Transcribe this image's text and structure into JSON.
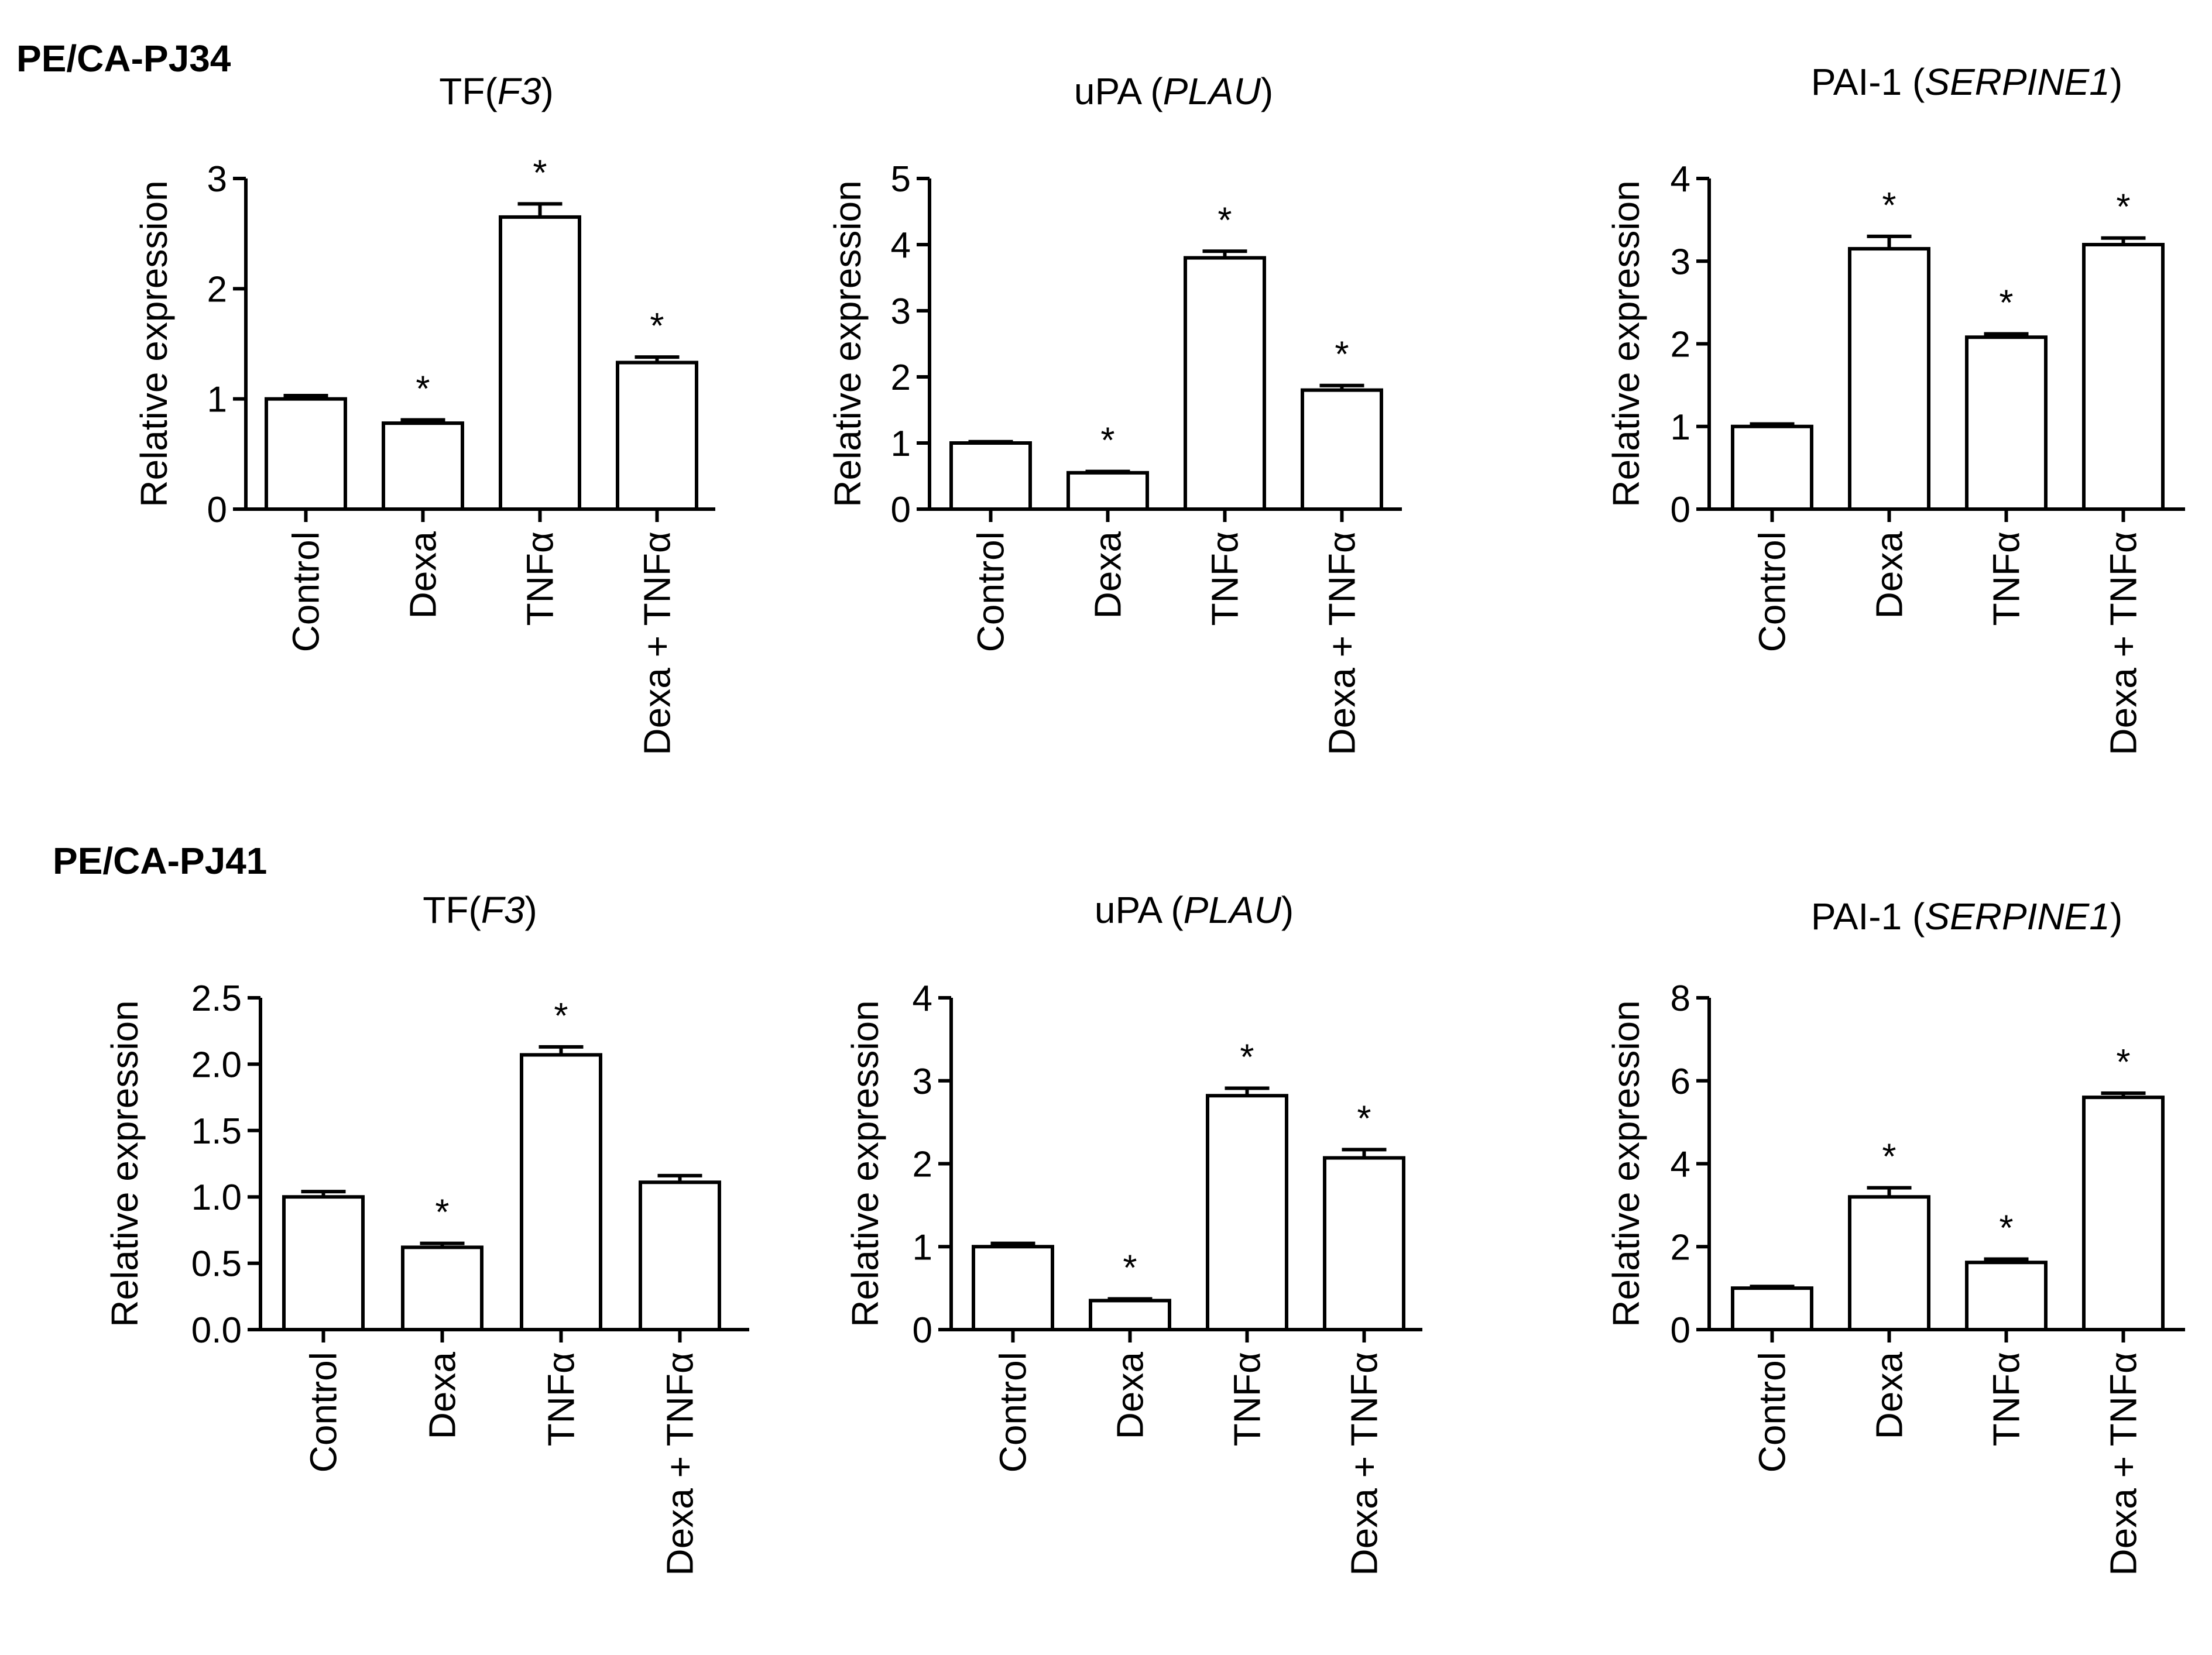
{
  "panels": [
    {
      "label": "PE/CA-PJ34"
    },
    {
      "label": "PE/CA-PJ41"
    }
  ],
  "chart_data": [
    {
      "type": "bar",
      "panel": "PE/CA-PJ34",
      "title": "TF(F3)",
      "title_main": "TF(",
      "title_italic": "F3",
      "title_end": ")",
      "xlabel": "",
      "ylabel": "Relative expression",
      "categories": [
        "Control",
        "Dexa",
        "TNFα",
        "Dexa + TNFα"
      ],
      "values": [
        1.0,
        0.78,
        2.65,
        1.33
      ],
      "errors": [
        0.03,
        0.03,
        0.12,
        0.05
      ],
      "significance": [
        "",
        "*",
        "*",
        "*"
      ],
      "ylim": [
        0,
        3
      ],
      "yticks": [
        "0",
        "1",
        "2",
        "3"
      ]
    },
    {
      "type": "bar",
      "panel": "PE/CA-PJ34",
      "title": "uPA (PLAU)",
      "title_main": "uPA (",
      "title_italic": "PLAU",
      "title_end": ")",
      "xlabel": "",
      "ylabel": "Relative expression",
      "categories": [
        "Control",
        "Dexa",
        "TNFα",
        "Dexa + TNFα"
      ],
      "values": [
        1.0,
        0.55,
        3.8,
        1.8
      ],
      "errors": [
        0.02,
        0.02,
        0.1,
        0.07
      ],
      "significance": [
        "",
        "*",
        "*",
        "*"
      ],
      "ylim": [
        0,
        5
      ],
      "yticks": [
        "0",
        "1",
        "2",
        "3",
        "4",
        "5"
      ]
    },
    {
      "type": "bar",
      "panel": "PE/CA-PJ34",
      "title": "PAI-1 (SERPINE1)",
      "title_main": "PAI-1 (",
      "title_italic": "SERPINE1",
      "title_end": ")",
      "xlabel": "",
      "ylabel": "Relative expression",
      "categories": [
        "Control",
        "Dexa",
        "TNFα",
        "Dexa + TNFα"
      ],
      "values": [
        1.0,
        3.15,
        2.08,
        3.2
      ],
      "errors": [
        0.03,
        0.15,
        0.04,
        0.08
      ],
      "significance": [
        "",
        "*",
        "*",
        "*"
      ],
      "ylim": [
        0,
        4
      ],
      "yticks": [
        "0",
        "1",
        "2",
        "3",
        "4"
      ]
    },
    {
      "type": "bar",
      "panel": "PE/CA-PJ41",
      "title": "TF(F3)",
      "title_main": "TF(",
      "title_italic": "F3",
      "title_end": ")",
      "xlabel": "",
      "ylabel": "Relative expression",
      "categories": [
        "Control",
        "Dexa",
        "TNFα",
        "Dexa + TNFα"
      ],
      "values": [
        1.0,
        0.62,
        2.07,
        1.11
      ],
      "errors": [
        0.04,
        0.03,
        0.06,
        0.05
      ],
      "significance": [
        "",
        "*",
        "*",
        ""
      ],
      "ylim": [
        0,
        2.5
      ],
      "yticks": [
        "0.0",
        "0.5",
        "1.0",
        "1.5",
        "2.0",
        "2.5"
      ]
    },
    {
      "type": "bar",
      "panel": "PE/CA-PJ41",
      "title": "uPA (PLAU)",
      "title_main": "uPA (",
      "title_italic": "PLAU",
      "title_end": ")",
      "xlabel": "",
      "ylabel": "Relative expression",
      "categories": [
        "Control",
        "Dexa",
        "TNFα",
        "Dexa + TNFα"
      ],
      "values": [
        1.0,
        0.35,
        2.82,
        2.07
      ],
      "errors": [
        0.04,
        0.02,
        0.09,
        0.1
      ],
      "significance": [
        "",
        "*",
        "*",
        "*"
      ],
      "ylim": [
        0,
        4
      ],
      "yticks": [
        "0",
        "1",
        "2",
        "3",
        "4"
      ]
    },
    {
      "type": "bar",
      "panel": "PE/CA-PJ41",
      "title": "PAI-1 (SERPINE1)",
      "title_main": "PAI-1 (",
      "title_italic": "SERPINE1",
      "title_end": ")",
      "xlabel": "",
      "ylabel": "Relative expression",
      "categories": [
        "Control",
        "Dexa",
        "TNFα",
        "Dexa + TNFα"
      ],
      "values": [
        1.0,
        3.2,
        1.62,
        5.6
      ],
      "errors": [
        0.04,
        0.22,
        0.08,
        0.1
      ],
      "significance": [
        "",
        "*",
        "*",
        "*"
      ],
      "ylim": [
        0,
        8
      ],
      "yticks": [
        "0",
        "2",
        "4",
        "6",
        "8"
      ]
    }
  ]
}
